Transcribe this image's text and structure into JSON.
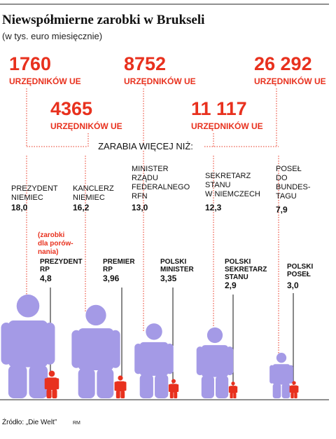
{
  "title": "Niewspółmierne zarobki w Brukseli",
  "subtitle": "(w tys. euro miesięcznie)",
  "eu_officials": [
    {
      "count": "1760",
      "unit": "URZĘDNIKÓW UE"
    },
    {
      "count": "4365",
      "unit": "URZĘDNIKÓW UE"
    },
    {
      "count": "8752",
      "unit": "URZĘDNIKÓW UE"
    },
    {
      "count": "11 117",
      "unit": "URZĘDNIKÓW UE"
    },
    {
      "count": "26 292",
      "unit": "URZĘDNIKÓW UE"
    }
  ],
  "connector_label": "ZARABIA WIĘCEJ NIŻ:",
  "comparison_note": "(zarobki dla porów-nania)",
  "source": "Źródło: „Die Welt”",
  "credit": "RM",
  "colors": {
    "accent": "#e8311e",
    "figure_german": "#a49ae6",
    "figure_polish": "#e8311e",
    "text": "#111111"
  },
  "chart_data": {
    "type": "bar",
    "categories": [
      "1760",
      "4365",
      "8752",
      "11 117",
      "26 292"
    ],
    "series": [
      {
        "values": [
          18.0,
          16.2,
          13.0,
          12.3,
          7.9
        ],
        "labels": [
          "PREZYDENT NIEMIEC",
          "KANCLERZ NIEMIEC",
          "MINISTER RZĄDU FEDERALNEGO RFN",
          "SEKRETARZ STANU W NIEMCZECH",
          "POSEŁ DO BUNDES-TAGU"
        ],
        "value_labels": [
          "18,0",
          "16,2",
          "13,0",
          "12,3",
          "7,9"
        ]
      },
      {
        "values": [
          4.8,
          3.96,
          3.35,
          2.9,
          3.0
        ],
        "labels": [
          "PREZYDENT RP",
          "PREMIER RP",
          "POLSKI MINISTER",
          "POLSKI SEKRETARZ STANU",
          "POLSKI POSEŁ"
        ],
        "value_labels": [
          "4,8",
          "3,96",
          "3,35",
          "2,9",
          "3,0"
        ]
      }
    ]
  }
}
